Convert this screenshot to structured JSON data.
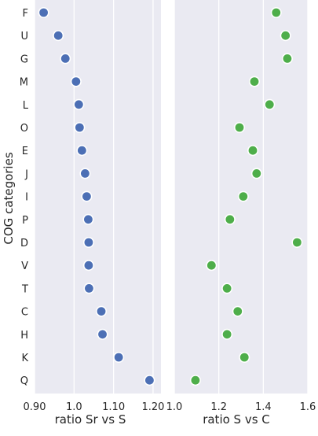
{
  "chart_data": [
    {
      "type": "scatter",
      "ylabel": "COG categories",
      "xlabel": "ratio Sr vs S",
      "categories": [
        "F",
        "U",
        "G",
        "M",
        "L",
        "O",
        "E",
        "J",
        "I",
        "P",
        "D",
        "V",
        "T",
        "C",
        "H",
        "K",
        "Q"
      ],
      "values": [
        0.923,
        0.96,
        0.978,
        1.005,
        1.012,
        1.014,
        1.02,
        1.028,
        1.032,
        1.036,
        1.037,
        1.037,
        1.038,
        1.069,
        1.072,
        1.113,
        1.191
      ],
      "xlim": [
        0.9,
        1.22
      ],
      "xticks": [
        "0.90",
        "1.0",
        "1.10",
        "1.20"
      ],
      "xtick_values": [
        0.9,
        1.0,
        1.1,
        1.2
      ],
      "marker_color": "#4c6fb5",
      "grid": true
    },
    {
      "type": "scatter",
      "xlabel": "ratio S vs C",
      "categories": [
        "F",
        "U",
        "G",
        "M",
        "L",
        "O",
        "E",
        "J",
        "I",
        "P",
        "D",
        "V",
        "T",
        "C",
        "H",
        "K",
        "Q"
      ],
      "values": [
        1.458,
        1.5,
        1.508,
        1.36,
        1.428,
        1.293,
        1.353,
        1.37,
        1.31,
        1.25,
        1.552,
        1.167,
        1.237,
        1.285,
        1.237,
        1.315,
        1.095
      ],
      "xlim": [
        1.0,
        1.6
      ],
      "xticks": [
        "1.0",
        "1.2",
        "1.4",
        "1.6"
      ],
      "xtick_values": [
        1.0,
        1.2,
        1.4,
        1.6
      ],
      "marker_color": "#4eae4a",
      "grid": true
    }
  ]
}
